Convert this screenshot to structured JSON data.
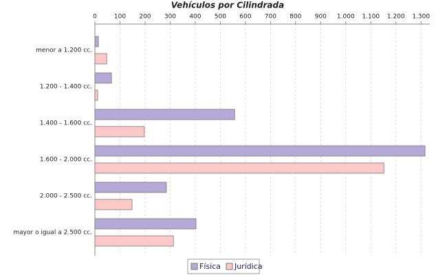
{
  "chart_data": {
    "type": "hbar",
    "title": "Vehículos por Cilindrada",
    "categories": [
      "menor a 1.200 cc.",
      "1.200 - 1.400 cc.",
      "1.400 - 1.600 cc.",
      "1.600 - 2.000 cc.",
      "2.000 - 2.500 cc.",
      "mayor o igual a 2.500 cc."
    ],
    "series": [
      {
        "name": "Física",
        "color": "#b4aad8",
        "values": [
          14,
          66,
          557,
          1316,
          285,
          403
        ]
      },
      {
        "name": "Jurídica",
        "color": "#fcc8c8",
        "values": [
          47,
          11,
          197,
          1152,
          148,
          313
        ]
      }
    ],
    "xlim": [
      0,
      1335
    ],
    "xticks": [
      0,
      100,
      200,
      300,
      400,
      500,
      600,
      700,
      800,
      900,
      {
        "value": 1000,
        "label": "1.000"
      },
      {
        "value": 1100,
        "label": "1.100"
      },
      {
        "value": 1200,
        "label": "1.200"
      },
      {
        "value": 1300,
        "label": "1.300"
      }
    ],
    "grid": true,
    "legend": "bottom"
  }
}
